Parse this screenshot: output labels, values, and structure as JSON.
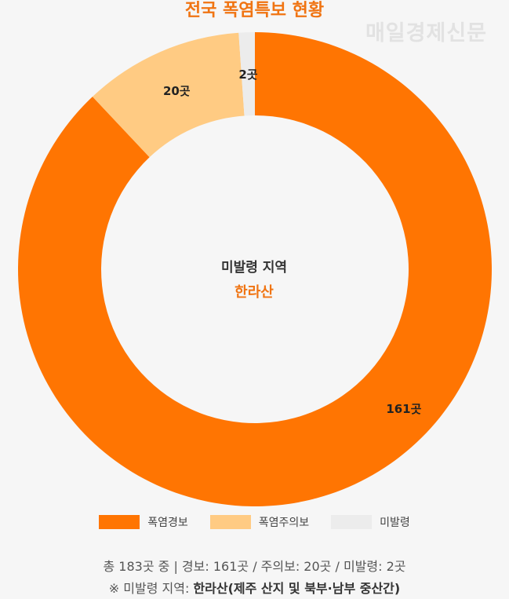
{
  "title": "전국 폭염특보 현황",
  "watermark": "매일경제신문",
  "center": {
    "label": "미발령 지역",
    "value": "한라산"
  },
  "colors": {
    "warning": "#ff7502",
    "advisory": "#ffcb83",
    "none": "#ececec",
    "accent": "#f07412"
  },
  "chart_data": {
    "type": "pie",
    "title": "전국 폭염특보 현황",
    "categories": [
      "폭염경보",
      "폭염주의보",
      "미발령"
    ],
    "values": [
      161,
      20,
      2
    ],
    "data_labels": [
      "161곳",
      "20곳",
      "2곳"
    ],
    "donut": true,
    "legend_position": "bottom"
  },
  "legend": [
    {
      "label": "폭염경보"
    },
    {
      "label": "폭염주의보"
    },
    {
      "label": "미발령"
    }
  ],
  "footer": {
    "line1": "총 183곳 중 | 경보: 161곳 / 주의보: 20곳 / 미발령: 2곳",
    "line2_prefix": "※ 미발령 지역: ",
    "line2_bold": "한라산(제주 산지 및 북부·남부 중산간)"
  }
}
